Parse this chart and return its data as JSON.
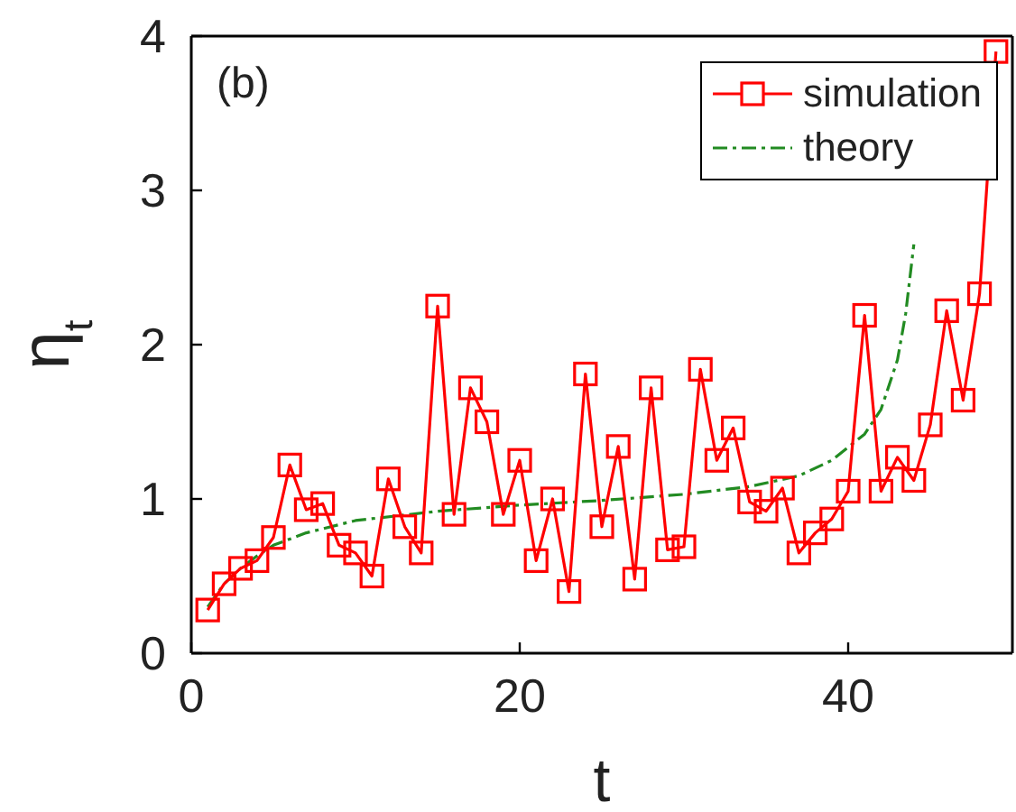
{
  "chart_data": {
    "type": "line",
    "xlabel": "t",
    "ylabel": "η$_{t}$",
    "annotations": [
      "(b)"
    ],
    "xlim": [
      0,
      50
    ],
    "xticks": [
      0,
      20,
      40
    ],
    "ylim": [
      0,
      4
    ],
    "yticks": [
      0,
      1,
      2,
      3,
      4
    ],
    "legend": "top right",
    "series": [
      {
        "name": "simulation",
        "color": "#ff0000",
        "marker": "square",
        "line_style": "solid",
        "x": [
          1,
          2,
          3,
          4,
          5,
          6,
          7,
          8,
          9,
          10,
          11,
          12,
          13,
          14,
          15,
          16,
          17,
          18,
          19,
          20,
          21,
          22,
          23,
          24,
          25,
          26,
          27,
          28,
          29,
          30,
          31,
          32,
          33,
          34,
          35,
          36,
          37,
          38,
          39,
          40,
          41,
          42,
          43,
          44,
          45,
          46,
          47,
          48,
          49
        ],
        "values": [
          0.28,
          0.45,
          0.55,
          0.6,
          0.75,
          1.22,
          0.93,
          0.97,
          0.7,
          0.65,
          0.5,
          1.13,
          0.82,
          0.65,
          2.25,
          0.9,
          1.72,
          1.5,
          0.9,
          1.25,
          0.6,
          1.0,
          0.4,
          1.81,
          0.82,
          1.34,
          0.48,
          1.72,
          0.67,
          0.69,
          1.84,
          1.25,
          1.46,
          0.98,
          0.92,
          1.07,
          0.65,
          0.78,
          0.87,
          1.05,
          2.19,
          1.05,
          1.27,
          1.12,
          1.48,
          2.22,
          1.64,
          2.33,
          3.9
        ]
      },
      {
        "name": "theory",
        "color": "#228b22",
        "marker": "none",
        "line_style": "dashed",
        "x": [
          1,
          2,
          3,
          4,
          5,
          7,
          10,
          15,
          20,
          25,
          30,
          34,
          37,
          39,
          41,
          42,
          43,
          43.5,
          44
        ],
        "values": [
          0.3,
          0.45,
          0.55,
          0.63,
          0.7,
          0.78,
          0.86,
          0.92,
          0.96,
          0.99,
          1.03,
          1.08,
          1.15,
          1.25,
          1.42,
          1.58,
          1.9,
          2.2,
          2.65
        ]
      }
    ]
  }
}
